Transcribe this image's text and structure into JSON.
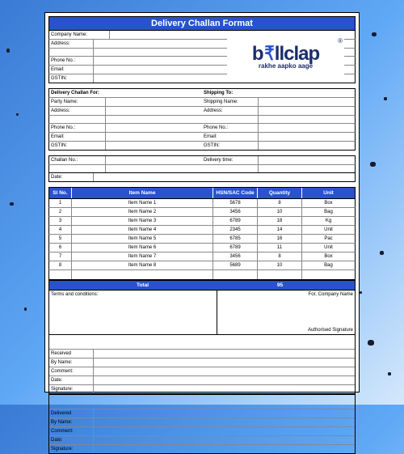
{
  "title": "Delivery Challan Format",
  "logo": {
    "brand_pre": "b",
    "brand_mid": "₹",
    "brand_post": "llclap",
    "tagline": "rakhe aapko aage",
    "reg": "®"
  },
  "company_fields": {
    "company_name": "Company Name:",
    "address": "Address:",
    "phone": "Phone No.:",
    "email": "Email:",
    "gstin": "GSTIN:"
  },
  "delivery_hdr_left": "Delivery Challan For:",
  "delivery_hdr_right": "Shipping To:",
  "party_name": "Party Name:",
  "shipping_name": "Shipping Name:",
  "address_lbl": "Address:",
  "phone_lbl": "Phone No.:",
  "email_lbl": "Email:",
  "gstin_lbl": "GSTIN:",
  "challan_no": "Challan No.:",
  "delivery_time": "Delivery time:",
  "date_lbl": "Date:",
  "items_header": {
    "sl": "Sl No.",
    "name": "Item Name",
    "hsn": "HSN/SAC Code",
    "qty": "Quantity",
    "unit": "Unit"
  },
  "items": [
    {
      "sl": "1",
      "name": "Item Name 1",
      "hsn": "5678",
      "qty": "8",
      "unit": "Box"
    },
    {
      "sl": "2",
      "name": "Item Name 2",
      "hsn": "3456",
      "qty": "10",
      "unit": "Bag"
    },
    {
      "sl": "3",
      "name": "Item Name 3",
      "hsn": "6789",
      "qty": "18",
      "unit": "Kg"
    },
    {
      "sl": "4",
      "name": "Item Name 4",
      "hsn": "2345",
      "qty": "14",
      "unit": "Unit"
    },
    {
      "sl": "5",
      "name": "Item Name 5",
      "hsn": "6785",
      "qty": "16",
      "unit": "Pac"
    },
    {
      "sl": "6",
      "name": "Item Name 6",
      "hsn": "6789",
      "qty": "11",
      "unit": "Unit"
    },
    {
      "sl": "7",
      "name": "Item Name 7",
      "hsn": "3456",
      "qty": "8",
      "unit": "Box"
    },
    {
      "sl": "8",
      "name": "Item Name 8",
      "hsn": "5689",
      "qty": "10",
      "unit": "Bag"
    }
  ],
  "total_label": "Total",
  "total_qty": "95",
  "terms_label": "Terms and conditions:",
  "for_company": "For, Company Name",
  "auth_sig": "Authorised Signature",
  "received": {
    "title": "Received",
    "by": "By Name:",
    "comment": "Comment:",
    "date": "Date:",
    "sig": "Signature:"
  },
  "delivered": {
    "title": "Delivered",
    "by": "By Name:",
    "comment": "Comment:",
    "date": "Date:",
    "sig": "Signature:"
  },
  "colors": {
    "header": "#2952cc",
    "bg_start": "#3a7bd5",
    "bg_end": "#d4e8fc"
  }
}
